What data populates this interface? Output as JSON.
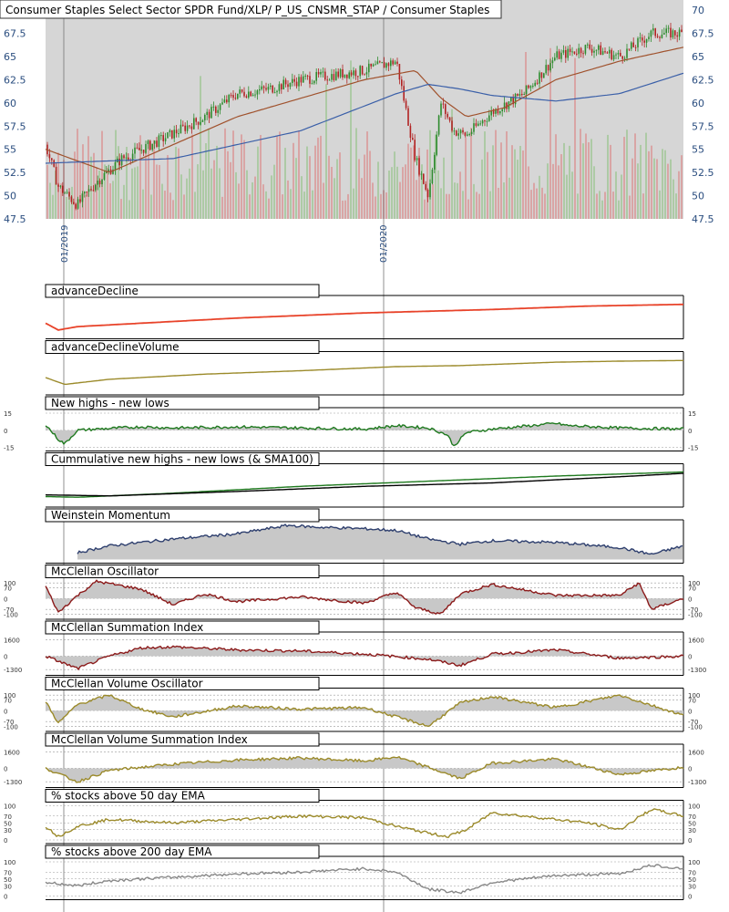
{
  "header": {
    "title": "Consumer Staples Select Sector SPDR Fund/XLP/ P_US_CNSMR_STAP / Consumer Staples"
  },
  "colors": {
    "panel_bg": "#d6d6d6",
    "axis_text": "#2a4d7f",
    "candle_up": "#2e8b2e",
    "candle_down": "#b22222",
    "vol_up": "#a9c9a0",
    "vol_down": "#d9a0a0",
    "sma_short": "#a0522d",
    "sma_long": "#3a5fa8",
    "ad_line": "#e8432a",
    "gold": "#9b8a2a",
    "green": "#1f7a1f",
    "navy": "#2e3f6e",
    "maroon": "#8b1a1a",
    "grey_line": "#888888"
  },
  "chart_data": [
    {
      "type": "candlestick",
      "title": "Consumer Staples Select Sector SPDR Fund/XLP/ P_US_CNSMR_STAP / Consumer Staples",
      "ylim": [
        47.5,
        70.5
      ],
      "y_ticks": [
        "47.5",
        "50",
        "52.5",
        "55",
        "57.5",
        "60",
        "62.5",
        "65",
        "67.5",
        "70"
      ],
      "x_tick_labels": [
        "01/2019",
        "01/2020"
      ],
      "x_tick_frac": [
        0.03,
        0.53
      ],
      "series": [
        {
          "name": "",
          "x": [
            0,
            0.02,
            0.05,
            0.08,
            0.12,
            0.18,
            0.25,
            0.3,
            0.35,
            0.4,
            0.45,
            0.5,
            0.55,
            0.58,
            0.6,
            0.62,
            0.64,
            0.66,
            0.7,
            0.75,
            0.8,
            0.85,
            0.9,
            0.95,
            1.0
          ],
          "values": [
            55.5,
            51,
            49,
            51.5,
            54,
            56,
            58.5,
            61,
            61.5,
            62.5,
            63,
            63.5,
            64.5,
            54,
            50,
            60,
            57,
            56.5,
            59,
            61,
            65,
            66,
            65,
            67.5,
            67.5
          ]
        },
        {
          "name": "",
          "x": [
            0,
            0.1,
            0.2,
            0.3,
            0.4,
            0.5,
            0.58,
            0.62,
            0.66,
            0.72,
            0.8,
            0.9,
            1.0
          ],
          "values": [
            55,
            52.5,
            55.5,
            58.5,
            60.5,
            62.5,
            63.5,
            60.5,
            58.5,
            59.5,
            62.5,
            64.5,
            66
          ]
        },
        {
          "name": "",
          "x": [
            0,
            0.2,
            0.4,
            0.55,
            0.6,
            0.65,
            0.7,
            0.8,
            0.9,
            1.0
          ],
          "values": [
            53.5,
            54,
            57,
            61,
            62,
            61.5,
            60.8,
            60.2,
            61,
            63.2
          ]
        }
      ]
    },
    {
      "type": "line",
      "title": "advanceDecline",
      "series": [
        {
          "name": "",
          "x": [
            0,
            0.02,
            0.05,
            0.15,
            0.3,
            0.5,
            0.7,
            0.85,
            1.0
          ],
          "values": [
            0.35,
            0.15,
            0.25,
            0.35,
            0.5,
            0.65,
            0.75,
            0.85,
            0.9
          ]
        }
      ]
    },
    {
      "type": "line",
      "title": "advanceDeclineVolume",
      "series": [
        {
          "name": "",
          "x": [
            0,
            0.03,
            0.1,
            0.25,
            0.4,
            0.55,
            0.65,
            0.8,
            0.9,
            1.0
          ],
          "values": [
            0.4,
            0.2,
            0.35,
            0.5,
            0.6,
            0.72,
            0.75,
            0.85,
            0.88,
            0.9
          ]
        }
      ]
    },
    {
      "type": "area",
      "title": "New highs - new lows",
      "y_ticks_left": [
        "15",
        "0",
        "-15"
      ],
      "y_ticks_right": [
        "15",
        "0",
        "-15"
      ],
      "ylim": [
        -15,
        15
      ],
      "series": [
        {
          "name": "",
          "x": [
            0,
            0.02,
            0.03,
            0.05,
            0.08,
            0.15,
            0.2,
            0.3,
            0.4,
            0.5,
            0.55,
            0.6,
            0.63,
            0.64,
            0.66,
            0.7,
            0.8,
            0.82,
            0.9,
            1.0
          ],
          "values": [
            5,
            -8,
            -12,
            0,
            1,
            3,
            2,
            3,
            2,
            1,
            4,
            2,
            -4,
            -14,
            -2,
            1,
            6,
            4,
            2,
            1
          ]
        }
      ]
    },
    {
      "type": "line",
      "title": "Cummulative new highs - new lows (& SMA100)",
      "series": [
        {
          "name": "",
          "x": [
            0,
            0.05,
            0.2,
            0.4,
            0.6,
            0.8,
            1.0
          ],
          "values": [
            0.2,
            0.18,
            0.3,
            0.5,
            0.65,
            0.8,
            0.92
          ]
        },
        {
          "name": "",
          "x": [
            0,
            0.1,
            0.3,
            0.5,
            0.7,
            0.9,
            1.0
          ],
          "values": [
            0.25,
            0.22,
            0.35,
            0.5,
            0.6,
            0.78,
            0.88
          ]
        }
      ]
    },
    {
      "type": "area",
      "title": "Weinstein Momentum",
      "series": [
        {
          "name": "",
          "x": [
            0.05,
            0.1,
            0.2,
            0.3,
            0.38,
            0.42,
            0.5,
            0.55,
            0.6,
            0.65,
            0.7,
            0.8,
            0.9,
            0.95,
            1.0
          ],
          "values": [
            0.2,
            0.4,
            0.6,
            0.75,
            1.0,
            0.95,
            0.9,
            0.85,
            0.6,
            0.45,
            0.55,
            0.5,
            0.35,
            0.15,
            0.4
          ]
        }
      ]
    },
    {
      "type": "area",
      "title": "McClellan Oscillator",
      "y_ticks_left": [
        "100",
        "70",
        "0",
        "-70",
        "-100"
      ],
      "y_ticks_right": [
        "100",
        "70",
        "0",
        "-70",
        "-100"
      ],
      "ylim": [
        -110,
        110
      ],
      "series": [
        {
          "name": "",
          "x": [
            0,
            0.02,
            0.05,
            0.08,
            0.15,
            0.2,
            0.25,
            0.3,
            0.4,
            0.5,
            0.55,
            0.58,
            0.62,
            0.65,
            0.7,
            0.8,
            0.9,
            0.93,
            0.95,
            1.0
          ],
          "values": [
            80,
            -90,
            20,
            110,
            60,
            -40,
            30,
            -20,
            10,
            -30,
            40,
            -60,
            -100,
            30,
            90,
            20,
            20,
            100,
            -70,
            0
          ]
        }
      ]
    },
    {
      "type": "area",
      "title": "McClellan Summation Index",
      "y_ticks_left": [
        "1600",
        "0",
        "-1300"
      ],
      "y_ticks_right": [
        "1600",
        "0",
        "-1300"
      ],
      "ylim": [
        -1500,
        1800
      ],
      "series": [
        {
          "name": "",
          "x": [
            0,
            0.05,
            0.1,
            0.15,
            0.2,
            0.3,
            0.4,
            0.5,
            0.6,
            0.65,
            0.7,
            0.8,
            0.9,
            1.0
          ],
          "values": [
            0,
            -1200,
            0,
            800,
            900,
            600,
            500,
            200,
            -300,
            -900,
            200,
            600,
            -200,
            0
          ]
        }
      ]
    },
    {
      "type": "area",
      "title": "McClellan Volume Oscillator",
      "y_ticks_left": [
        "100",
        "70",
        "0",
        "-70",
        "-100"
      ],
      "y_ticks_right": [
        "100",
        "70",
        "0",
        "-70",
        "-100"
      ],
      "ylim": [
        -110,
        110
      ],
      "series": [
        {
          "name": "",
          "x": [
            0,
            0.02,
            0.05,
            0.1,
            0.15,
            0.2,
            0.3,
            0.4,
            0.5,
            0.55,
            0.6,
            0.65,
            0.7,
            0.8,
            0.9,
            1.0
          ],
          "values": [
            60,
            -80,
            40,
            100,
            10,
            -40,
            30,
            10,
            20,
            -40,
            -100,
            50,
            90,
            20,
            100,
            -30
          ]
        }
      ]
    },
    {
      "type": "area",
      "title": "McClellan Volume Summation Index",
      "y_ticks_left": [
        "1600",
        "0",
        "-1300"
      ],
      "y_ticks_right": [
        "1600",
        "0",
        "-1300"
      ],
      "ylim": [
        -1500,
        1800
      ],
      "series": [
        {
          "name": "",
          "x": [
            0,
            0.05,
            0.1,
            0.2,
            0.3,
            0.4,
            0.5,
            0.55,
            0.6,
            0.65,
            0.7,
            0.8,
            0.9,
            1.0
          ],
          "values": [
            0,
            -1300,
            -200,
            400,
            800,
            1000,
            700,
            1100,
            100,
            -1000,
            500,
            900,
            -600,
            100
          ]
        }
      ]
    },
    {
      "type": "line",
      "title": "% stocks above 50 day EMA",
      "y_ticks_left": [
        "100",
        "70",
        "50",
        "30",
        "0"
      ],
      "y_ticks_right": [
        "100",
        "70",
        "50",
        "30",
        "0"
      ],
      "ylim": [
        0,
        100
      ],
      "series": [
        {
          "name": "",
          "x": [
            0,
            0.02,
            0.05,
            0.1,
            0.2,
            0.3,
            0.4,
            0.5,
            0.55,
            0.6,
            0.63,
            0.66,
            0.7,
            0.8,
            0.85,
            0.9,
            0.95,
            1.0
          ],
          "values": [
            40,
            10,
            40,
            60,
            50,
            60,
            70,
            65,
            40,
            20,
            10,
            30,
            80,
            60,
            50,
            30,
            90,
            70
          ]
        }
      ]
    },
    {
      "type": "line",
      "title": "% stocks above 200 day EMA",
      "y_ticks_left": [
        "100",
        "70",
        "50",
        "30",
        "0"
      ],
      "y_ticks_right": [
        "100",
        "70",
        "50",
        "30",
        "0"
      ],
      "ylim": [
        0,
        100
      ],
      "series": [
        {
          "name": "",
          "x": [
            0,
            0.05,
            0.1,
            0.2,
            0.3,
            0.4,
            0.5,
            0.55,
            0.6,
            0.65,
            0.7,
            0.8,
            0.9,
            0.95,
            1.0
          ],
          "values": [
            40,
            30,
            45,
            55,
            65,
            70,
            80,
            70,
            20,
            10,
            40,
            60,
            65,
            90,
            80
          ]
        }
      ]
    }
  ]
}
